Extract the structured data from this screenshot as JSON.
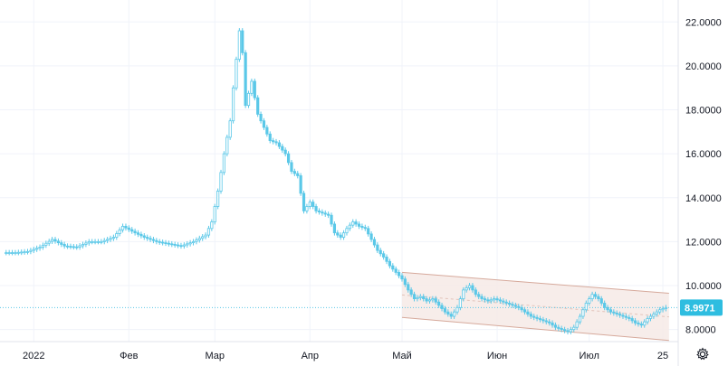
{
  "chart_data": {
    "type": "candlestick",
    "y_ticks": [
      "22.0000",
      "20.0000",
      "18.0000",
      "16.0000",
      "14.0000",
      "12.0000",
      "10.0000",
      "8.0000"
    ],
    "y_tick_values": [
      22,
      20,
      18,
      16,
      14,
      12,
      10,
      8
    ],
    "ylim": [
      7.45,
      23.0
    ],
    "x_ticks": [
      {
        "label": "2022",
        "t": 2
      },
      {
        "label": "Фев",
        "t": 33
      },
      {
        "label": "Мар",
        "t": 61
      },
      {
        "label": "Апр",
        "t": 92
      },
      {
        "label": "Май",
        "t": 122
      },
      {
        "label": "Июн",
        "t": 153
      },
      {
        "label": "Июл",
        "t": 183
      },
      {
        "label": "25",
        "t": 207
      }
    ],
    "xlim": [
      -9,
      212
    ],
    "grid": true,
    "last_price": "8.9971",
    "last_price_value": 8.9971,
    "colors": {
      "candle": "#5bc8e8",
      "channel_fill": "#f6eae6",
      "channel_line": "#d6a99b",
      "grid": "#f0f3fa",
      "price_line": "#5bc8e8",
      "badge": "#2ebde0"
    },
    "channel": {
      "upper": [
        {
          "t": 122,
          "v": 10.6
        },
        {
          "t": 209,
          "v": 9.65
        }
      ],
      "lower": [
        {
          "t": 122,
          "v": 8.55
        },
        {
          "t": 209,
          "v": 7.5
        }
      ]
    },
    "points": [
      {
        "t": -8,
        "v": 11.5
      },
      {
        "t": -4,
        "v": 11.5
      },
      {
        "t": 0,
        "v": 11.55
      },
      {
        "t": 4,
        "v": 11.75
      },
      {
        "t": 8,
        "v": 12.1
      },
      {
        "t": 12,
        "v": 11.8
      },
      {
        "t": 16,
        "v": 11.75
      },
      {
        "t": 20,
        "v": 12.0
      },
      {
        "t": 24,
        "v": 12.0
      },
      {
        "t": 28,
        "v": 12.2
      },
      {
        "t": 31,
        "v": 12.7
      },
      {
        "t": 35,
        "v": 12.4
      },
      {
        "t": 38,
        "v": 12.2
      },
      {
        "t": 42,
        "v": 12.0
      },
      {
        "t": 46,
        "v": 11.9
      },
      {
        "t": 50,
        "v": 11.8
      },
      {
        "t": 54,
        "v": 12.0
      },
      {
        "t": 58,
        "v": 12.3
      },
      {
        "t": 60,
        "v": 12.9
      },
      {
        "t": 62,
        "v": 14.3
      },
      {
        "t": 64,
        "v": 16.0
      },
      {
        "t": 66,
        "v": 17.5
      },
      {
        "t": 67,
        "v": 19.0
      },
      {
        "t": 68,
        "v": 20.3
      },
      {
        "t": 69,
        "v": 21.6
      },
      {
        "t": 70,
        "v": 20.6
      },
      {
        "t": 71,
        "v": 18.2
      },
      {
        "t": 73,
        "v": 19.3
      },
      {
        "t": 75,
        "v": 17.8
      },
      {
        "t": 77,
        "v": 17.2
      },
      {
        "t": 79,
        "v": 16.6
      },
      {
        "t": 81,
        "v": 16.5
      },
      {
        "t": 84,
        "v": 16.0
      },
      {
        "t": 86,
        "v": 15.2
      },
      {
        "t": 88,
        "v": 15.0
      },
      {
        "t": 90,
        "v": 13.4
      },
      {
        "t": 92,
        "v": 13.8
      },
      {
        "t": 94,
        "v": 13.4
      },
      {
        "t": 96,
        "v": 13.3
      },
      {
        "t": 98,
        "v": 13.2
      },
      {
        "t": 100,
        "v": 12.4
      },
      {
        "t": 102,
        "v": 12.2
      },
      {
        "t": 104,
        "v": 12.6
      },
      {
        "t": 106,
        "v": 12.9
      },
      {
        "t": 108,
        "v": 12.7
      },
      {
        "t": 110,
        "v": 12.6
      },
      {
        "t": 112,
        "v": 12.1
      },
      {
        "t": 114,
        "v": 11.6
      },
      {
        "t": 116,
        "v": 11.3
      },
      {
        "t": 118,
        "v": 10.9
      },
      {
        "t": 120,
        "v": 10.6
      },
      {
        "t": 122,
        "v": 10.3
      },
      {
        "t": 124,
        "v": 9.8
      },
      {
        "t": 126,
        "v": 9.4
      },
      {
        "t": 128,
        "v": 9.5
      },
      {
        "t": 130,
        "v": 9.3
      },
      {
        "t": 132,
        "v": 9.4
      },
      {
        "t": 134,
        "v": 9.1
      },
      {
        "t": 136,
        "v": 8.8
      },
      {
        "t": 138,
        "v": 8.6
      },
      {
        "t": 140,
        "v": 9.0
      },
      {
        "t": 142,
        "v": 9.8
      },
      {
        "t": 144,
        "v": 10.0
      },
      {
        "t": 146,
        "v": 9.6
      },
      {
        "t": 148,
        "v": 9.4
      },
      {
        "t": 150,
        "v": 9.3
      },
      {
        "t": 152,
        "v": 9.4
      },
      {
        "t": 154,
        "v": 9.3
      },
      {
        "t": 156,
        "v": 9.2
      },
      {
        "t": 158,
        "v": 9.1
      },
      {
        "t": 160,
        "v": 9.0
      },
      {
        "t": 162,
        "v": 8.8
      },
      {
        "t": 164,
        "v": 8.6
      },
      {
        "t": 166,
        "v": 8.5
      },
      {
        "t": 168,
        "v": 8.4
      },
      {
        "t": 170,
        "v": 8.3
      },
      {
        "t": 172,
        "v": 8.1
      },
      {
        "t": 174,
        "v": 8.0
      },
      {
        "t": 176,
        "v": 7.9
      },
      {
        "t": 178,
        "v": 8.1
      },
      {
        "t": 180,
        "v": 8.6
      },
      {
        "t": 182,
        "v": 9.2
      },
      {
        "t": 184,
        "v": 9.6
      },
      {
        "t": 186,
        "v": 9.4
      },
      {
        "t": 188,
        "v": 9.0
      },
      {
        "t": 190,
        "v": 8.8
      },
      {
        "t": 192,
        "v": 8.7
      },
      {
        "t": 194,
        "v": 8.6
      },
      {
        "t": 196,
        "v": 8.5
      },
      {
        "t": 198,
        "v": 8.3
      },
      {
        "t": 200,
        "v": 8.2
      },
      {
        "t": 202,
        "v": 8.5
      },
      {
        "t": 204,
        "v": 8.7
      },
      {
        "t": 206,
        "v": 8.9
      },
      {
        "t": 208,
        "v": 9.0
      }
    ]
  },
  "icons": {
    "settings": "gear-icon"
  }
}
